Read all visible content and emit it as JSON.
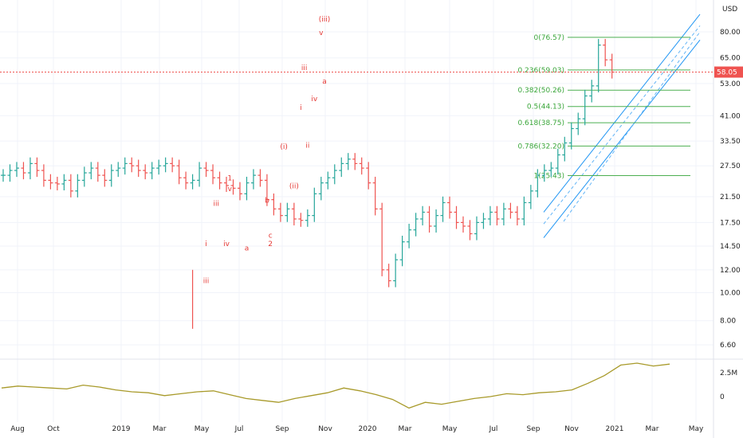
{
  "chart_data": {
    "type": "line",
    "price_axis": {
      "scale": "log",
      "currency": "USD",
      "tick_labels": [
        "80.00",
        "65.00",
        "53.00",
        "41.00",
        "33.50",
        "27.50",
        "21.50",
        "17.50",
        "14.50",
        "12.00",
        "10.00",
        "8.00",
        "6.60"
      ],
      "tick_values": [
        80,
        65,
        53,
        41,
        33.5,
        27.5,
        21.5,
        17.5,
        14.5,
        12,
        10,
        8,
        6.6
      ],
      "last_price_label": "58.05",
      "last_price": 58.05
    },
    "time_axis": {
      "tick_labels": [
        "Aug",
        "Oct",
        "2019",
        "Mar",
        "May",
        "Jul",
        "Sep",
        "Nov",
        "2020",
        "Mar",
        "May",
        "Jul",
        "Sep",
        "Nov",
        "2021",
        "Mar",
        "May"
      ]
    },
    "series": [
      {
        "kind": "ohlc",
        "close_x": [
          0,
          2,
          4,
          6,
          8,
          10,
          12,
          14,
          16,
          18,
          20,
          22,
          24,
          26,
          28,
          30,
          32,
          34,
          36,
          38,
          40,
          42,
          44,
          46,
          48,
          50,
          52,
          54,
          56,
          58,
          60,
          62,
          64,
          66,
          68,
          70,
          72,
          74,
          76,
          78,
          80,
          82,
          84,
          86,
          88,
          90,
          92,
          94,
          96,
          98,
          100,
          102,
          104,
          106,
          108,
          110,
          112,
          114,
          116,
          118,
          120,
          122,
          124,
          126,
          128,
          130,
          132,
          134,
          136,
          138,
          140,
          142,
          144,
          146,
          148,
          150,
          152,
          154,
          156,
          158,
          160,
          162,
          164,
          166,
          168,
          170,
          172,
          174,
          176,
          178,
          180
        ],
        "close_y": [
          25.5,
          26.5,
          27.0,
          26.0,
          28.0,
          26.5,
          24.5,
          24.0,
          23.8,
          24.5,
          22.5,
          24.5,
          26.0,
          27.0,
          25.5,
          24.5,
          26.5,
          27.0,
          28.0,
          27.5,
          26.5,
          26.0,
          27.0,
          27.5,
          28.0,
          27.5,
          25.0,
          24.0,
          24.5,
          27.0,
          26.5,
          25.0,
          24.0,
          23.5,
          23.0,
          22.0,
          24.0,
          25.5,
          24.5,
          21.0,
          19.5,
          18.5,
          19.5,
          18.0,
          17.8,
          18.5,
          22.0,
          24.0,
          25.0,
          26.5,
          28.0,
          29.0,
          28.0,
          27.0,
          24.0,
          19.5,
          12.0,
          11.0,
          13.0,
          15.0,
          16.5,
          18.0,
          19.0,
          17.0,
          18.5,
          20.5,
          19.0,
          17.5,
          17.0,
          16.0,
          17.5,
          18.0,
          19.0,
          18.0,
          19.5,
          19.0,
          18.0,
          20.5,
          22.5,
          25.5,
          26.5,
          27.0,
          30.0,
          33.0,
          37.0,
          40.0,
          48.0,
          52.0,
          72.0,
          64.0,
          58.05
        ]
      },
      {
        "kind": "volume-indicator",
        "axis_labels": [
          "2.5M",
          "0"
        ],
        "values": [
          0.9,
          1.1,
          1.0,
          0.9,
          0.8,
          1.2,
          1.0,
          0.7,
          0.5,
          0.4,
          0.1,
          0.3,
          0.5,
          0.6,
          0.2,
          -0.2,
          -0.4,
          -0.6,
          -0.2,
          0.1,
          0.4,
          0.9,
          0.6,
          0.2,
          -0.3,
          -1.2,
          -0.6,
          -0.8,
          -0.5,
          -0.2,
          0.0,
          0.3,
          0.2,
          0.4,
          0.5,
          0.7,
          1.4,
          2.2,
          3.3,
          3.5,
          3.2,
          3.4
        ]
      }
    ],
    "fibonacci": [
      {
        "label": "0(76.57)",
        "value": 76.57
      },
      {
        "label": "0.236(59.03)",
        "value": 59.03
      },
      {
        "label": "0.382(50.26)",
        "value": 50.26
      },
      {
        "label": "0.5(44.13)",
        "value": 44.13
      },
      {
        "label": "0.618(38.75)",
        "value": 38.75
      },
      {
        "label": "0.786(32.20)",
        "value": 32.2
      },
      {
        "label": "1(25.43)",
        "value": 25.43
      }
    ],
    "wave_labels": [
      {
        "text": "i",
        "x": 60,
        "y": 14.5
      },
      {
        "text": "iii",
        "x": 60,
        "y": 10.8
      },
      {
        "text": "iii",
        "x": 63,
        "y": 20.0
      },
      {
        "text": "iv",
        "x": 66,
        "y": 14.5
      },
      {
        "text": "1",
        "x": 67,
        "y": 24.5
      },
      {
        "text": "v",
        "x": 67,
        "y": 22.5
      },
      {
        "text": "a",
        "x": 72,
        "y": 14.0
      },
      {
        "text": "b",
        "x": 78,
        "y": 20.5
      },
      {
        "text": "c",
        "x": 79,
        "y": 15.5
      },
      {
        "text": "2",
        "x": 79,
        "y": 14.5
      },
      {
        "text": "(i)",
        "x": 83,
        "y": 31.5
      },
      {
        "text": "(ii)",
        "x": 86,
        "y": 23.0
      },
      {
        "text": "i",
        "x": 88,
        "y": 43.0
      },
      {
        "text": "ii",
        "x": 90,
        "y": 31.8
      },
      {
        "text": "iii",
        "x": 89,
        "y": 59.0
      },
      {
        "text": "iv",
        "x": 92,
        "y": 46.0
      },
      {
        "text": "(iii)",
        "x": 95,
        "y": 87.0
      },
      {
        "text": "v",
        "x": 94,
        "y": 78.0
      },
      {
        "text": "a",
        "x": 95,
        "y": 53.0
      }
    ],
    "grid": true,
    "legend": "none"
  }
}
